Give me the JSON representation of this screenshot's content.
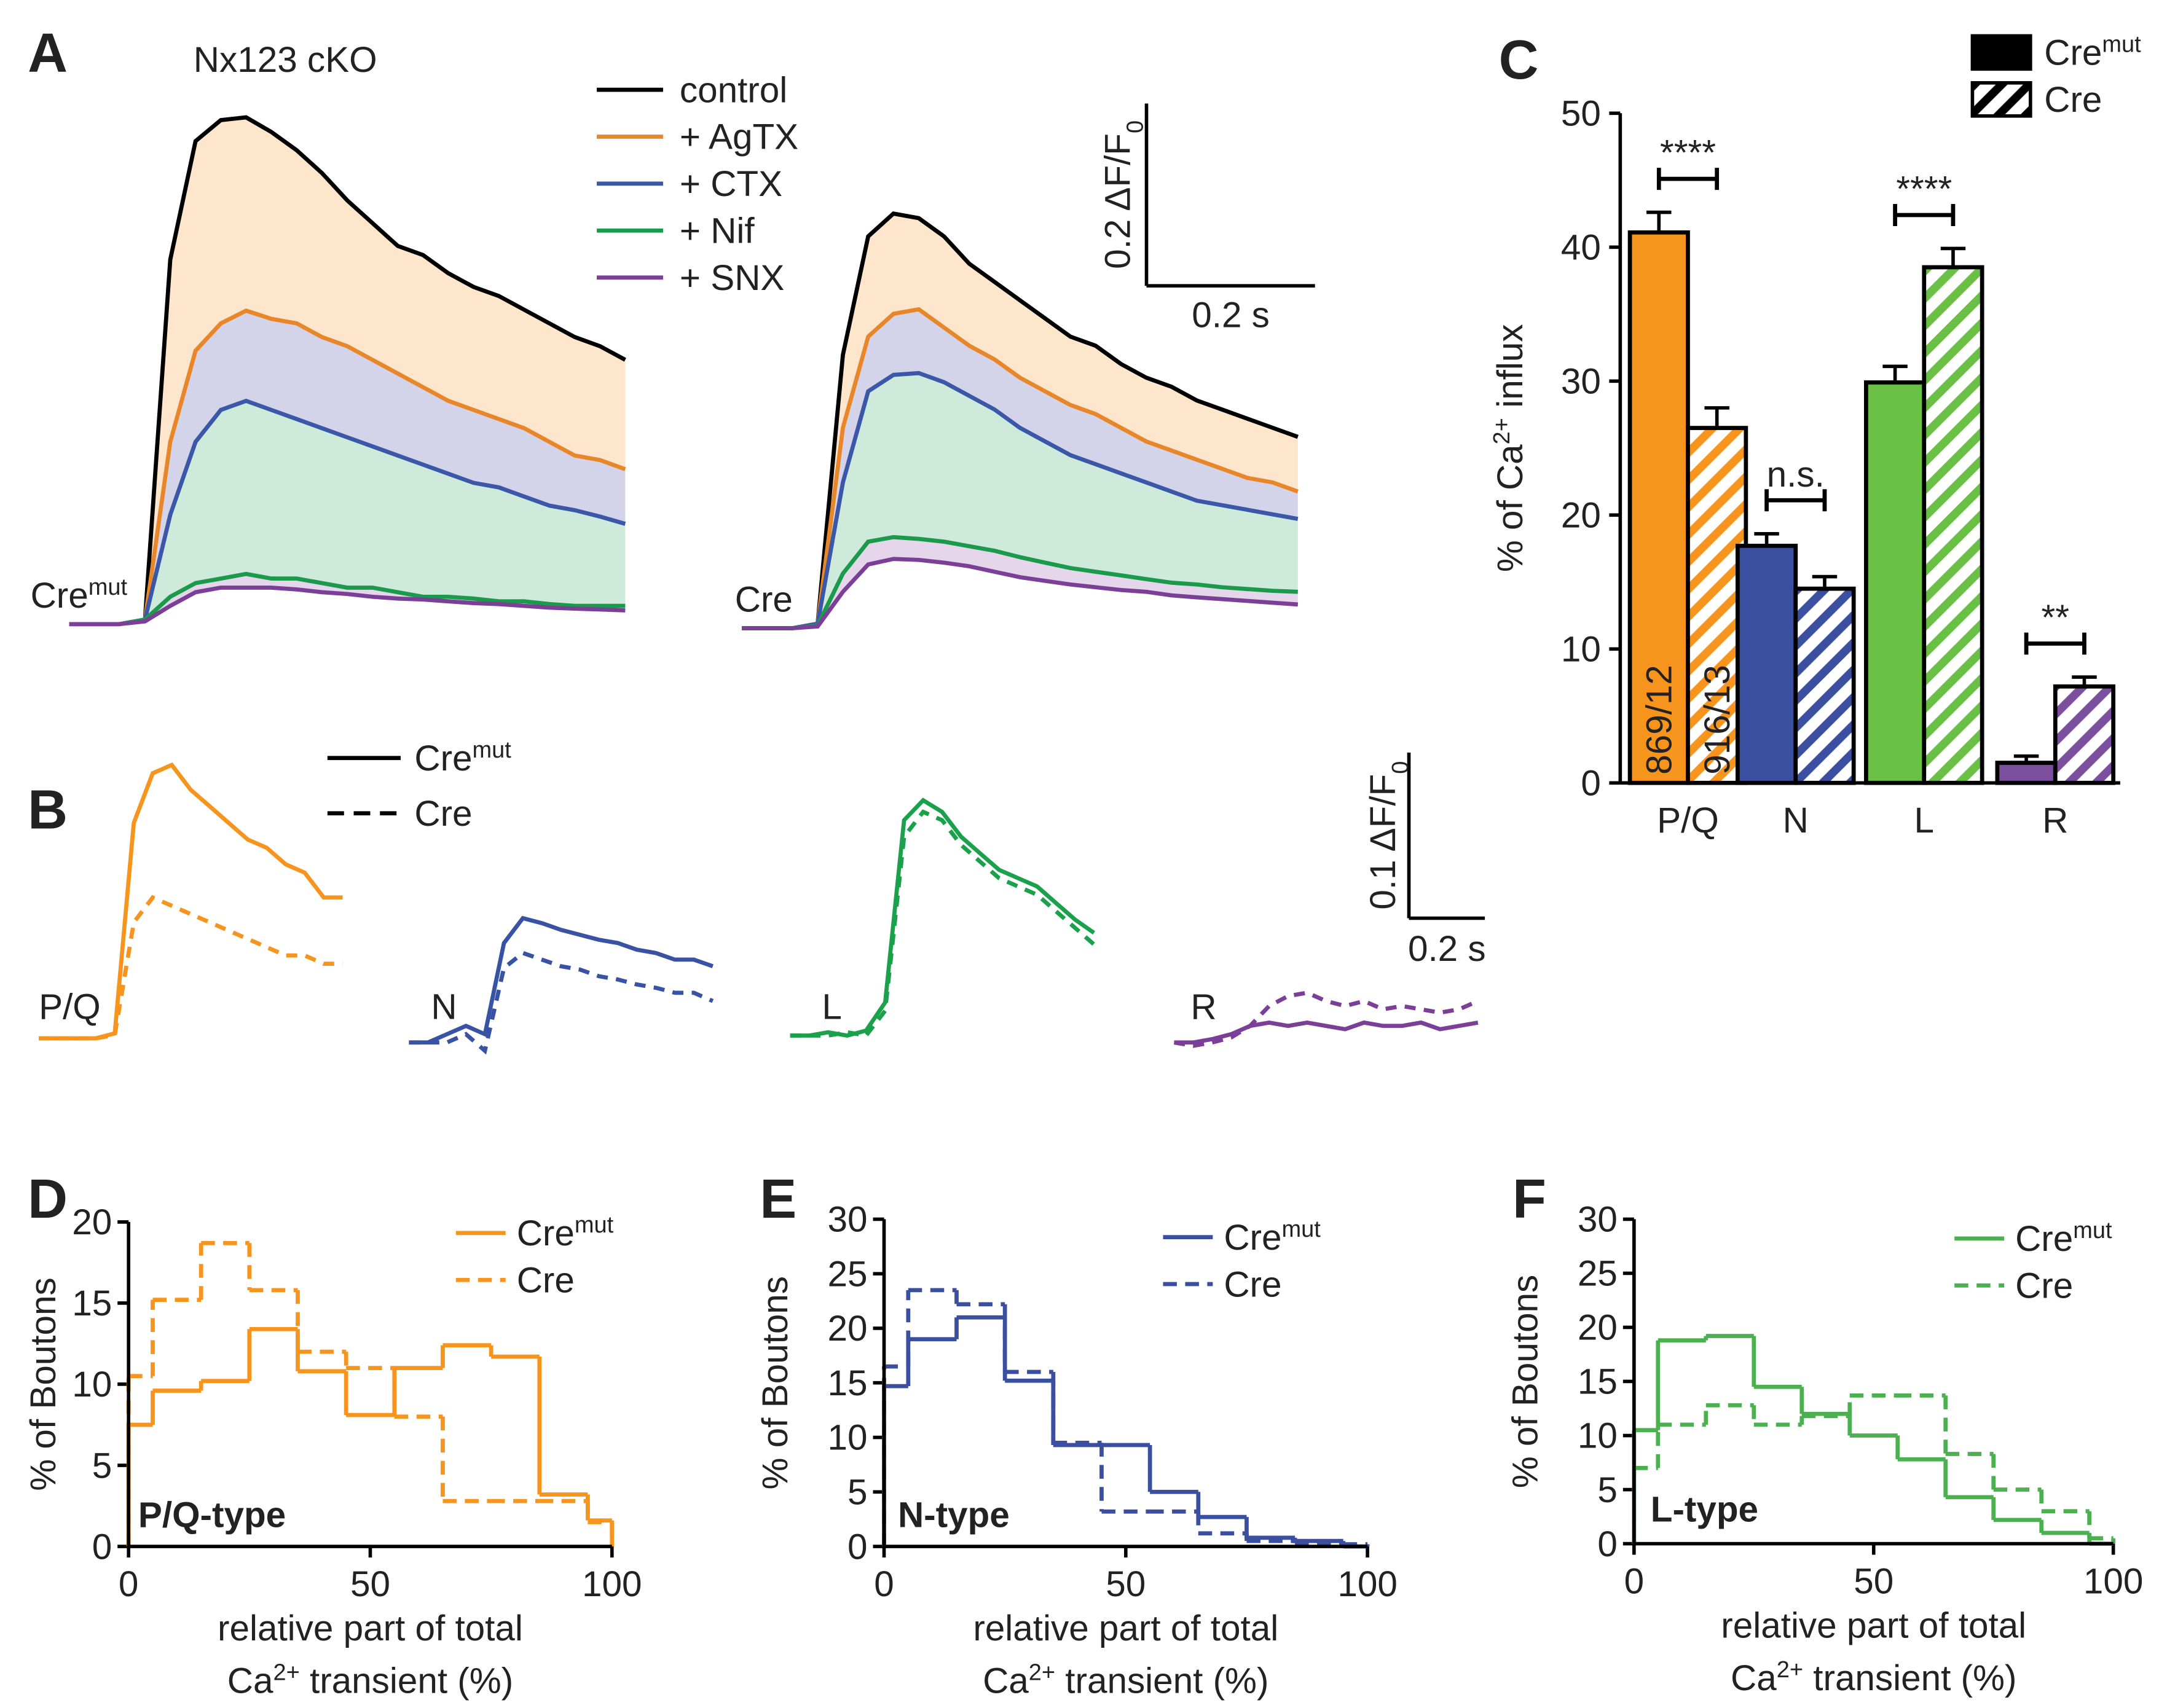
{
  "chart_data": [
    {
      "type": "area",
      "panel": "A",
      "title": "Nx123 cKO",
      "groups": [
        [
          "Cre",
          {
            "sup": "mut"
          }
        ],
        "Cre"
      ],
      "x": [
        0,
        0.03,
        0.06,
        0.09,
        0.12,
        0.15,
        0.18,
        0.21,
        0.24,
        0.27,
        0.3,
        0.33,
        0.36,
        0.39,
        0.42,
        0.45,
        0.48,
        0.51,
        0.54,
        0.57,
        0.6,
        0.63,
        0.66
      ],
      "series": [
        {
          "name": "control",
          "color": "#000000",
          "values": [
            [
              0,
              0,
              0,
              0.005,
              0.4,
              0.53,
              0.553,
              0.556,
              0.54,
              0.52,
              0.495,
              0.465,
              0.44,
              0.415,
              0.405,
              0.385,
              0.37,
              0.36,
              0.345,
              0.33,
              0.315,
              0.305,
              0.29
            ],
            [
              0,
              0,
              0,
              0.005,
              0.3,
              0.43,
              0.455,
              0.45,
              0.43,
              0.4,
              0.38,
              0.36,
              0.34,
              0.32,
              0.31,
              0.29,
              0.275,
              0.265,
              0.25,
              0.24,
              0.23,
              0.22,
              0.21
            ]
          ]
        },
        {
          "name": "+ AgTX",
          "color": "#e8862a",
          "fill": "#fde6cc",
          "values": [
            [
              0,
              0,
              0,
              0.005,
              0.2,
              0.3,
              0.33,
              0.344,
              0.335,
              0.33,
              0.315,
              0.305,
              0.29,
              0.275,
              0.26,
              0.245,
              0.235,
              0.225,
              0.215,
              0.2,
              0.185,
              0.18,
              0.17
            ],
            [
              0,
              0,
              0,
              0.005,
              0.22,
              0.32,
              0.345,
              0.35,
              0.33,
              0.31,
              0.295,
              0.275,
              0.26,
              0.245,
              0.235,
              0.22,
              0.205,
              0.195,
              0.185,
              0.175,
              0.165,
              0.16,
              0.15
            ]
          ]
        },
        {
          "name": "+ CTX",
          "color": "#3b57a8",
          "fill": "#d3d3ea",
          "values": [
            [
              0,
              0,
              0,
              0.005,
              0.12,
              0.2,
              0.235,
              0.245,
              0.235,
              0.225,
              0.215,
              0.205,
              0.195,
              0.185,
              0.175,
              0.165,
              0.155,
              0.15,
              0.14,
              0.13,
              0.125,
              0.118,
              0.11
            ],
            [
              0,
              0,
              0,
              0.005,
              0.16,
              0.26,
              0.278,
              0.28,
              0.27,
              0.255,
              0.24,
              0.22,
              0.205,
              0.19,
              0.18,
              0.17,
              0.16,
              0.15,
              0.14,
              0.135,
              0.13,
              0.125,
              0.12
            ]
          ]
        },
        {
          "name": "+ Nif",
          "color": "#1a9a4a",
          "fill": "#cdeadb",
          "values": [
            [
              0,
              0,
              0,
              0.005,
              0.03,
              0.045,
              0.05,
              0.055,
              0.05,
              0.05,
              0.045,
              0.04,
              0.04,
              0.035,
              0.03,
              0.03,
              0.028,
              0.025,
              0.025,
              0.022,
              0.02,
              0.02,
              0.02
            ],
            [
              0,
              0,
              0,
              0.003,
              0.06,
              0.095,
              0.1,
              0.098,
              0.095,
              0.09,
              0.085,
              0.078,
              0.072,
              0.066,
              0.062,
              0.058,
              0.054,
              0.05,
              0.048,
              0.045,
              0.043,
              0.041,
              0.04
            ]
          ]
        },
        {
          "name": "+ SNX",
          "color": "#7b3f98",
          "fill": "#e6d6eb",
          "values": [
            [
              0,
              0,
              0,
              0.003,
              0.02,
              0.035,
              0.04,
              0.04,
              0.04,
              0.038,
              0.035,
              0.033,
              0.03,
              0.028,
              0.027,
              0.025,
              0.023,
              0.022,
              0.02,
              0.018,
              0.017,
              0.016,
              0.015
            ],
            [
              0,
              0,
              0,
              0.002,
              0.04,
              0.07,
              0.076,
              0.075,
              0.072,
              0.068,
              0.062,
              0.056,
              0.052,
              0.048,
              0.045,
              0.042,
              0.04,
              0.036,
              0.034,
              0.032,
              0.03,
              0.028,
              0.026
            ]
          ]
        }
      ],
      "scalebar": {
        "y": {
          "value": 0.2,
          "label": [
            "0.2 ΔF/F",
            {
              "sub": "0"
            }
          ]
        },
        "x": {
          "value": 0.2,
          "label": "0.2 s"
        }
      }
    },
    {
      "type": "line",
      "panel": "B",
      "categories": [
        "P/Q",
        "N",
        "L",
        "R"
      ],
      "colors": [
        "#f7941d",
        "#3852a4",
        "#1ba14b",
        "#7b3f98"
      ],
      "x": [
        0,
        0.05,
        0.1,
        0.15,
        0.2,
        0.25,
        0.3,
        0.35,
        0.4,
        0.45,
        0.5,
        0.55,
        0.6,
        0.65,
        0.7,
        0.75,
        0.8
      ],
      "series": [
        {
          "name": [
            "Cre",
            {
              "sup": "mut"
            }
          ],
          "dash": false,
          "values": [
            [
              0,
              0,
              0,
              0,
              0.003,
              0.13,
              0.16,
              0.165,
              0.15,
              0.14,
              0.13,
              0.12,
              0.115,
              0.105,
              0.1,
              0.085,
              0.085
            ],
            [
              0,
              0,
              0.005,
              0.01,
              0.005,
              0.06,
              0.075,
              0.072,
              0.068,
              0.065,
              0.062,
              0.06,
              0.056,
              0.054,
              0.05,
              0.05,
              0.046
            ],
            [
              0,
              0,
              0.002,
              0,
              0.003,
              0.02,
              0.13,
              0.142,
              0.135,
              0.12,
              0.11,
              0.1,
              0.095,
              0.09,
              0.08,
              0.07,
              0.062
            ],
            [
              0,
              0,
              0.002,
              0.005,
              0.01,
              0.012,
              0.01,
              0.012,
              0.01,
              0.008,
              0.012,
              0.01,
              0.01,
              0.012,
              0.008,
              0.01,
              0.012
            ]
          ]
        },
        {
          "name": "Cre",
          "dash": true,
          "values": [
            [
              0,
              0,
              0,
              0,
              0.002,
              0.07,
              0.085,
              0.08,
              0.075,
              0.07,
              0.065,
              0.06,
              0.055,
              0.05,
              0.05,
              0.045,
              0.045
            ],
            [
              0,
              0,
              0,
              0.005,
              -0.005,
              0.045,
              0.054,
              0.05,
              0.046,
              0.044,
              0.04,
              0.038,
              0.035,
              0.033,
              0.03,
              0.03,
              0.025
            ],
            [
              0,
              0,
              0,
              0.002,
              0,
              0.015,
              0.12,
              0.135,
              0.13,
              0.115,
              0.105,
              0.095,
              0.09,
              0.085,
              0.075,
              0.065,
              0.055
            ],
            [
              0,
              -0.002,
              0,
              0.003,
              0.01,
              0.022,
              0.028,
              0.03,
              0.025,
              0.022,
              0.025,
              0.02,
              0.022,
              0.02,
              0.018,
              0.02,
              0.025
            ]
          ]
        }
      ],
      "scalebar": {
        "y": {
          "value": 0.1,
          "label": [
            "0.1 ΔF/F",
            {
              "sub": "0"
            }
          ]
        },
        "x": {
          "value": 0.2,
          "label": "0.2 s"
        }
      }
    },
    {
      "type": "bar",
      "panel": "C",
      "categories": [
        "P/Q",
        "N",
        "L",
        "R"
      ],
      "colors": [
        "#f7941d",
        "#3a4fa0",
        "#6abf45",
        "#7b4f9e"
      ],
      "series": [
        {
          "name": [
            "Cre",
            {
              "sup": "mut"
            }
          ],
          "pattern": "solid",
          "values": [
            41.1,
            17.7,
            29.9,
            1.5
          ],
          "errors": [
            1.5,
            0.9,
            1.2,
            0.5
          ],
          "n_label": "869/12"
        },
        {
          "name": "Cre",
          "pattern": "hatched",
          "values": [
            26.5,
            14.5,
            38.5,
            7.2
          ],
          "errors": [
            1.5,
            0.9,
            1.4,
            0.7
          ],
          "n_label": "916/13"
        }
      ],
      "ylabel": [
        "% of Ca",
        {
          "sup": "2+"
        },
        " influx"
      ],
      "ylim": [
        0,
        50
      ],
      "yticks": [
        0,
        10,
        20,
        30,
        40,
        50
      ],
      "significance": [
        "****",
        "n.s.",
        "****",
        "**"
      ]
    },
    {
      "type": "histogram",
      "panel": "D",
      "annotation": "P/Q-type",
      "color": "#f7941d",
      "bins": [
        0,
        5,
        15,
        25,
        35,
        45,
        55,
        65,
        75,
        85,
        95,
        100
      ],
      "series": [
        {
          "name": [
            "Cre",
            {
              "sup": "mut"
            }
          ],
          "dash": false,
          "values": [
            7.5,
            9.6,
            10.2,
            13.4,
            10.8,
            8.1,
            11,
            12.4,
            11.7,
            3.2,
            1.6
          ]
        },
        {
          "name": "Cre",
          "dash": true,
          "values": [
            10.5,
            15.2,
            18.7,
            15.8,
            12,
            11,
            8,
            2.8,
            2.8,
            2.8,
            1.5
          ]
        }
      ],
      "xlim": [
        0,
        100
      ],
      "xticks": [
        0,
        50,
        100
      ],
      "ylim": [
        0,
        20
      ],
      "yticks": [
        0,
        5,
        10,
        15,
        20
      ],
      "xlabel": [
        "relative part of total",
        [
          "Ca",
          {
            "sup": "2+"
          },
          " transient (%)"
        ]
      ],
      "ylabel": "% of Boutons"
    },
    {
      "type": "histogram",
      "panel": "E",
      "annotation": "N-type",
      "color": "#3a4fa0",
      "bins": [
        0,
        5,
        15,
        25,
        35,
        45,
        55,
        65,
        75,
        85,
        95,
        100
      ],
      "series": [
        {
          "name": [
            "Cre",
            {
              "sup": "mut"
            }
          ],
          "dash": false,
          "values": [
            14.7,
            19,
            21,
            15.2,
            9.3,
            9.3,
            5,
            2.7,
            0.8,
            0.5,
            0
          ]
        },
        {
          "name": "Cre",
          "dash": true,
          "values": [
            16.5,
            23.5,
            22.2,
            16,
            9.5,
            3.2,
            3.2,
            1.2,
            0.5,
            0.3,
            0.2
          ]
        }
      ],
      "xlim": [
        0,
        100
      ],
      "xticks": [
        0,
        50,
        100
      ],
      "ylim": [
        0,
        30
      ],
      "yticks": [
        0,
        5,
        10,
        15,
        20,
        25,
        30
      ],
      "xlabel": [
        "relative part of total",
        [
          "Ca",
          {
            "sup": "2+"
          },
          " transient (%)"
        ]
      ],
      "ylabel": "% of Boutons"
    },
    {
      "type": "histogram",
      "panel": "F",
      "annotation": "L-type",
      "color": "#4cb050",
      "bins": [
        0,
        5,
        15,
        25,
        35,
        45,
        55,
        65,
        75,
        85,
        95,
        100
      ],
      "series": [
        {
          "name": [
            "Cre",
            {
              "sup": "mut"
            }
          ],
          "dash": false,
          "values": [
            10.5,
            18.8,
            19.2,
            14.5,
            12,
            10,
            7.8,
            4.3,
            2.2,
            1,
            0
          ]
        },
        {
          "name": "Cre",
          "dash": true,
          "values": [
            7,
            11,
            12.8,
            11,
            11.8,
            13.7,
            13.7,
            8.3,
            5,
            3,
            0.5
          ]
        }
      ],
      "xlim": [
        0,
        100
      ],
      "xticks": [
        0,
        50,
        100
      ],
      "ylim": [
        0,
        30
      ],
      "yticks": [
        0,
        5,
        10,
        15,
        20,
        25,
        30
      ],
      "xlabel": [
        "relative part of total",
        [
          "Ca",
          {
            "sup": "2+"
          },
          " transient (%)"
        ]
      ],
      "ylabel": "% of Boutons"
    }
  ]
}
